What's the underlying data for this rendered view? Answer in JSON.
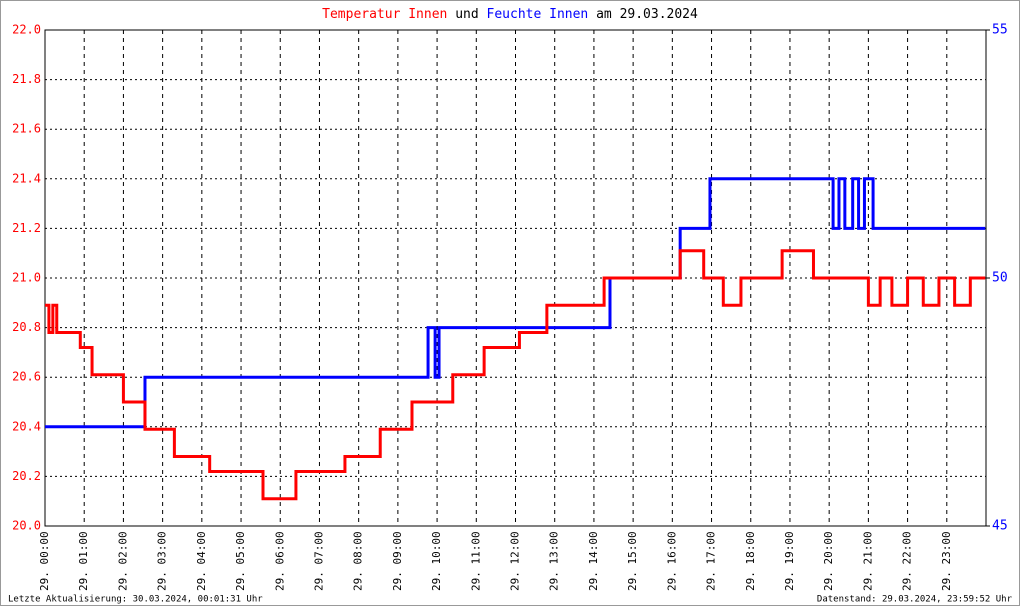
{
  "chart_data": {
    "type": "line",
    "title_parts": [
      "Temperatur Innen",
      "und",
      "Feuchte Innen",
      "am 29.03.2024"
    ],
    "footer_left": "Letzte Aktualisierung: 30.03.2024, 00:01:31 Uhr",
    "footer_right": "Datenstand: 29.03.2024, 23:59:52 Uhr",
    "xlim": [
      0,
      24
    ],
    "xticks": [
      {
        "value": 0,
        "label": "29. 00:00"
      },
      {
        "value": 1,
        "label": "29. 01:00"
      },
      {
        "value": 2,
        "label": "29. 02:00"
      },
      {
        "value": 3,
        "label": "29. 03:00"
      },
      {
        "value": 4,
        "label": "29. 04:00"
      },
      {
        "value": 5,
        "label": "29. 05:00"
      },
      {
        "value": 6,
        "label": "29. 06:00"
      },
      {
        "value": 7,
        "label": "29. 07:00"
      },
      {
        "value": 8,
        "label": "29. 08:00"
      },
      {
        "value": 9,
        "label": "29. 09:00"
      },
      {
        "value": 10,
        "label": "29. 10:00"
      },
      {
        "value": 11,
        "label": "29. 11:00"
      },
      {
        "value": 12,
        "label": "29. 12:00"
      },
      {
        "value": 13,
        "label": "29. 13:00"
      },
      {
        "value": 14,
        "label": "29. 14:00"
      },
      {
        "value": 15,
        "label": "29. 15:00"
      },
      {
        "value": 16,
        "label": "29. 16:00"
      },
      {
        "value": 17,
        "label": "29. 17:00"
      },
      {
        "value": 18,
        "label": "29. 18:00"
      },
      {
        "value": 19,
        "label": "29. 19:00"
      },
      {
        "value": 20,
        "label": "29. 20:00"
      },
      {
        "value": 21,
        "label": "29. 21:00"
      },
      {
        "value": 22,
        "label": "29. 22:00"
      },
      {
        "value": 23,
        "label": "29. 23:00"
      }
    ],
    "ylim": [
      20,
      22
    ],
    "yticks": [
      {
        "value": 20,
        "label": "20.0"
      },
      20.2,
      20.4,
      20.6,
      20.8,
      {
        "value": 21,
        "label": "21.0"
      },
      21.2,
      21.4,
      21.6,
      21.8,
      {
        "value": 22,
        "label": "22.0"
      }
    ],
    "y2lim": [
      45,
      55
    ],
    "y2ticks": [
      45,
      50,
      55
    ],
    "grid": true,
    "series": [
      {
        "name": "Temperatur Innen",
        "color": "#ff0000",
        "x": [
          0,
          0.1,
          0.1,
          0.2,
          0.2,
          0.3,
          0.3,
          0.9,
          0.9,
          1.2,
          1.2,
          2.0,
          2.0,
          2.55,
          2.55,
          3.3,
          3.3,
          4.2,
          4.2,
          5.56,
          5.56,
          6.4,
          6.4,
          7.65,
          7.65,
          8.55,
          8.55,
          9.36,
          9.36,
          10.4,
          10.4,
          11.2,
          11.2,
          12.1,
          12.1,
          12.8,
          12.8,
          14.26,
          14.26,
          16.2,
          16.2,
          16.8,
          16.8,
          17.3,
          17.3,
          17.75,
          17.75,
          18.8,
          18.8,
          19.6,
          19.6,
          21.0,
          21.0,
          21.3,
          21.3,
          21.6,
          21.6,
          22.0,
          22.0,
          22.4,
          22.4,
          22.8,
          22.8,
          23.2,
          23.2,
          23.6,
          23.6,
          23.98
        ],
        "values": [
          20.89,
          20.89,
          20.78,
          20.78,
          20.89,
          20.89,
          20.78,
          20.78,
          20.72,
          20.72,
          20.61,
          20.61,
          20.5,
          20.5,
          20.39,
          20.39,
          20.28,
          20.28,
          20.22,
          20.22,
          20.11,
          20.11,
          20.22,
          20.22,
          20.28,
          20.28,
          20.39,
          20.39,
          20.5,
          20.5,
          20.61,
          20.61,
          20.72,
          20.72,
          20.78,
          20.78,
          20.89,
          20.89,
          21.0,
          21.0,
          21.11,
          21.11,
          21.0,
          21.0,
          20.89,
          20.89,
          21.0,
          21.0,
          21.11,
          21.11,
          21.0,
          21.0,
          20.89,
          20.89,
          21.0,
          21.0,
          20.89,
          20.89,
          21.0,
          21.0,
          20.89,
          20.89,
          21.0,
          21.0,
          20.89,
          20.89,
          21.0,
          21.0
        ]
      },
      {
        "name": "Feuchte Innen",
        "color": "#0000ff",
        "axis": "y2",
        "x": [
          0,
          2.55,
          2.55,
          9.77,
          9.77,
          9.95,
          9.95,
          10.05,
          10.05,
          14.41,
          14.41,
          16.2,
          16.2,
          16.96,
          16.96,
          20.1,
          20.1,
          20.25,
          20.25,
          20.4,
          20.4,
          20.6,
          20.6,
          20.75,
          20.75,
          20.9,
          20.9,
          21.12,
          21.12,
          23.98
        ],
        "values": [
          47,
          47,
          48,
          48,
          49,
          49,
          48,
          48,
          49,
          49,
          50,
          50,
          51,
          51,
          52,
          52,
          51,
          51,
          52,
          52,
          51,
          51,
          52,
          52,
          51,
          51,
          52,
          52,
          51,
          51
        ]
      }
    ]
  }
}
